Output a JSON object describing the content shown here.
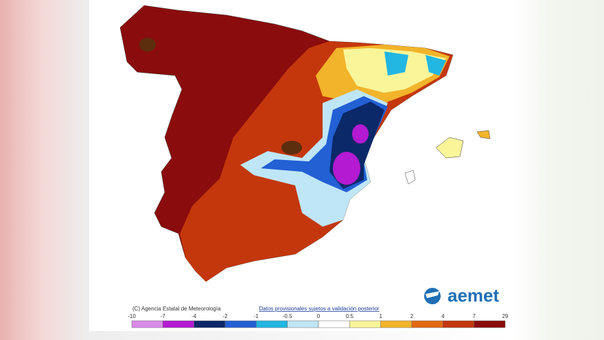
{
  "map": {
    "credit": "(C) Agencia Estatal de Meteorología",
    "note": "Datos provisionales sujetos a validación posterior",
    "logo": "aemet",
    "legend": {
      "ticks": [
        -10,
        -7,
        -4,
        -2,
        -1,
        -0.5,
        0,
        0.5,
        1,
        2,
        4,
        7,
        29
      ],
      "colors": [
        "#d98ae8",
        "#b41ad2",
        "#0b2868",
        "#2260d4",
        "#22b6e2",
        "#bfe6f7",
        "#ffffff",
        "#fbf59a",
        "#f2b42a",
        "#e46a12",
        "#c4370c",
        "#8a0c0c",
        "#5c2e0e"
      ]
    }
  }
}
